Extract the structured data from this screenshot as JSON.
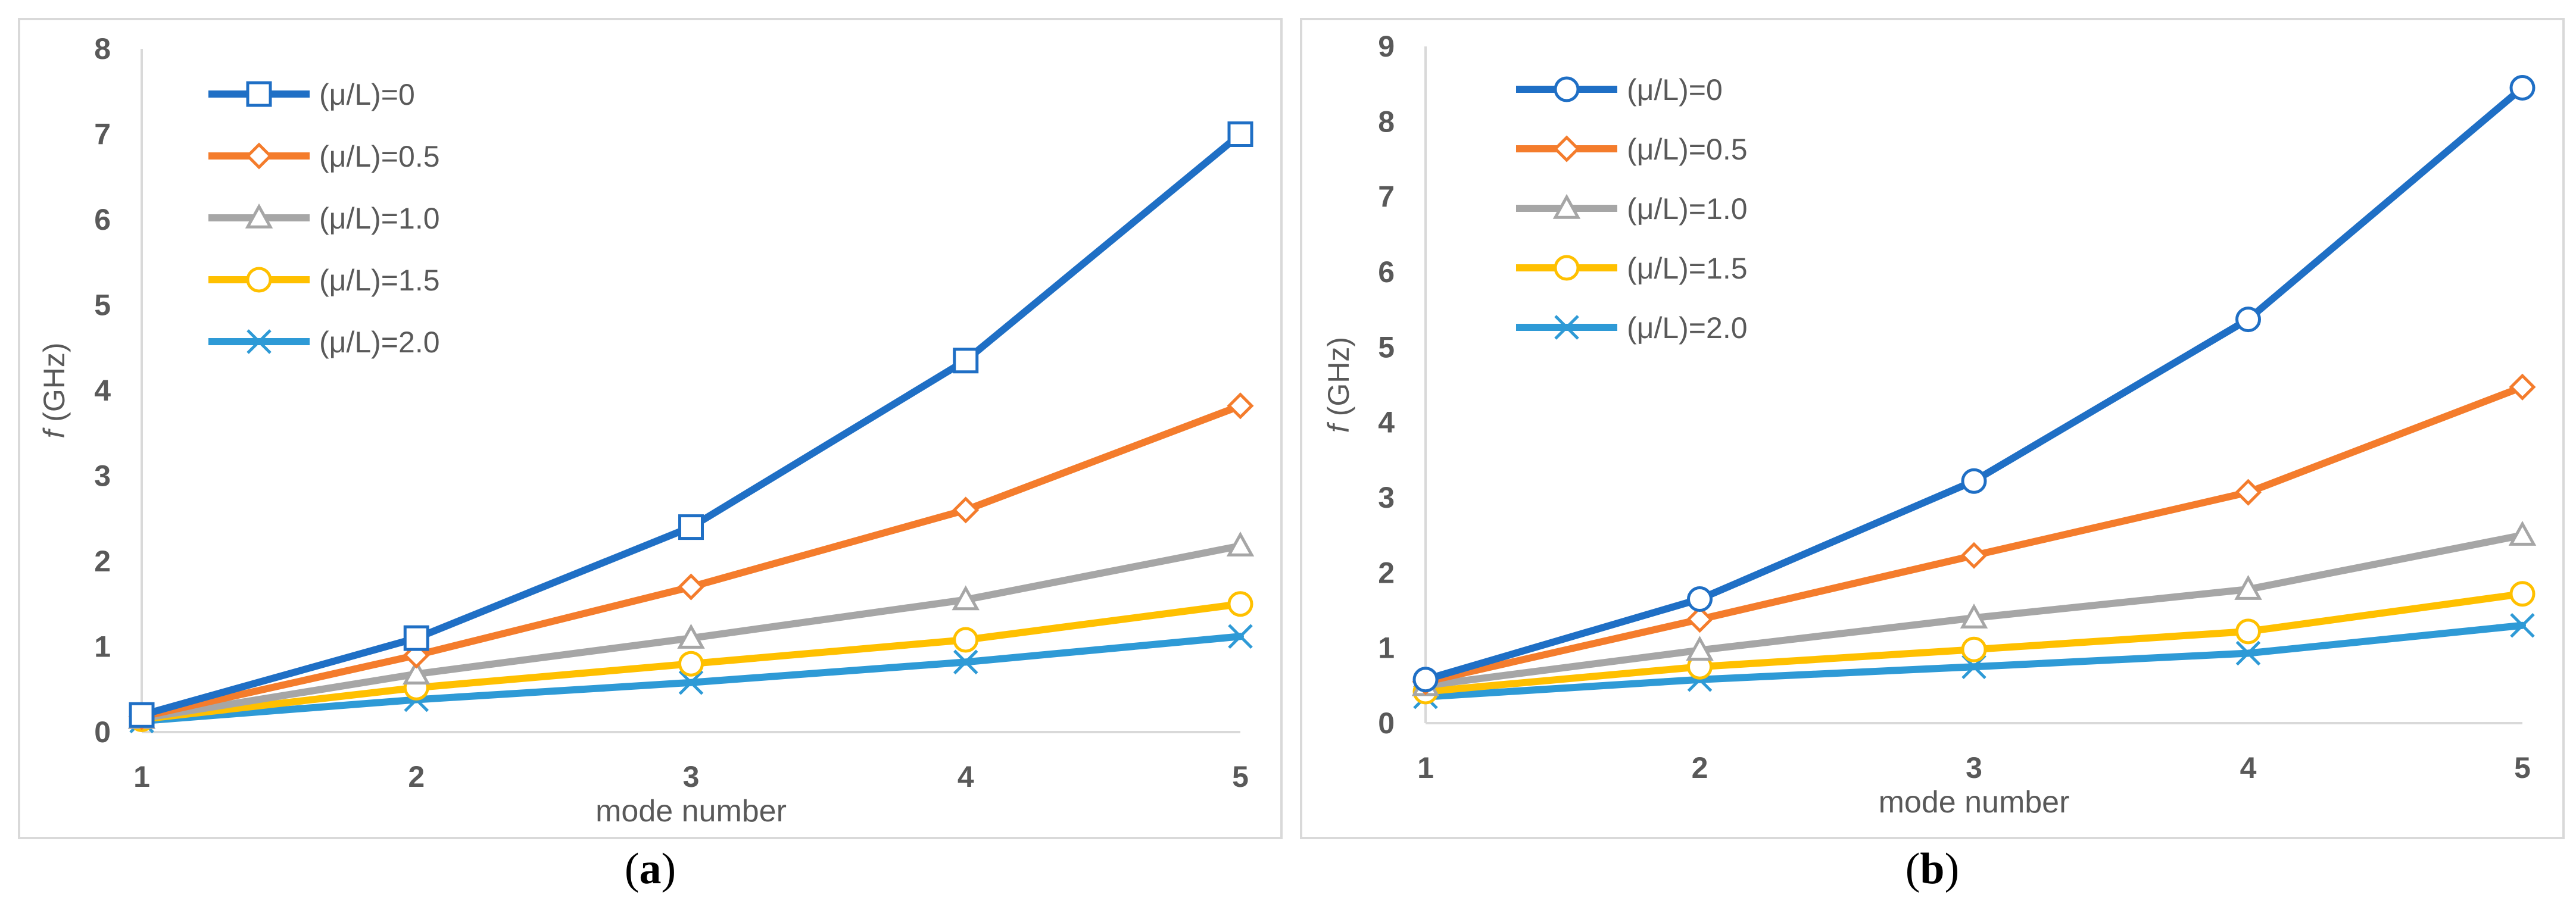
{
  "colors": {
    "series": [
      "#1F6FC5",
      "#F47C2C",
      "#A6A6A6",
      "#FFC000",
      "#2E9AD6"
    ],
    "frame": "#D9D9D9",
    "axis": "#D9D9D9",
    "tick_text": "#595959",
    "axis_label_text": "#595959"
  },
  "chart_data": [
    {
      "type": "line",
      "panel": "a",
      "caption": {
        "open": "(",
        "letter": "a",
        "close": ")"
      },
      "xlabel": "mode number",
      "ylabel": {
        "italic": "f",
        "unit": " (GHz)"
      },
      "x": [
        1,
        2,
        3,
        4,
        5
      ],
      "xticks": [
        "1",
        "2",
        "3",
        "4",
        "5"
      ],
      "yticks": [
        "0",
        "1",
        "2",
        "3",
        "4",
        "5",
        "6",
        "7",
        "8"
      ],
      "ylim": [
        0,
        8
      ],
      "grid": false,
      "legend_position": "top-left",
      "series": [
        {
          "name": "(μ/L)=0",
          "marker": "square",
          "values": [
            0.2,
            1.1,
            2.4,
            4.35,
            7.0
          ]
        },
        {
          "name": "(μ/L)=0.5",
          "marker": "diamond",
          "values": [
            0.18,
            0.9,
            1.7,
            2.6,
            3.82
          ]
        },
        {
          "name": "(μ/L)=1.0",
          "marker": "triangle",
          "values": [
            0.16,
            0.68,
            1.1,
            1.55,
            2.18
          ]
        },
        {
          "name": "(μ/L)=1.5",
          "marker": "circle",
          "values": [
            0.15,
            0.52,
            0.8,
            1.08,
            1.5
          ]
        },
        {
          "name": "(μ/L)=2.0",
          "marker": "x",
          "values": [
            0.13,
            0.38,
            0.58,
            0.82,
            1.12
          ]
        }
      ]
    },
    {
      "type": "line",
      "panel": "b",
      "caption": {
        "open": "(",
        "letter": "b",
        "close": ")"
      },
      "xlabel": "mode number",
      "ylabel": {
        "italic": "f",
        "unit": " (GHz)"
      },
      "x": [
        1,
        2,
        3,
        4,
        5
      ],
      "xticks": [
        "1",
        "2",
        "3",
        "4",
        "5"
      ],
      "yticks": [
        "0",
        "1",
        "2",
        "3",
        "4",
        "5",
        "6",
        "7",
        "8",
        "9"
      ],
      "ylim": [
        0,
        9
      ],
      "grid": false,
      "legend_position": "top-left",
      "series": [
        {
          "name": "(μ/L)=0",
          "marker": "circle",
          "values": [
            0.58,
            1.65,
            3.22,
            5.37,
            8.45
          ]
        },
        {
          "name": "(μ/L)=0.5",
          "marker": "diamond",
          "values": [
            0.55,
            1.38,
            2.23,
            3.07,
            4.47
          ]
        },
        {
          "name": "(μ/L)=1.0",
          "marker": "triangle",
          "values": [
            0.5,
            0.97,
            1.4,
            1.78,
            2.5
          ]
        },
        {
          "name": "(μ/L)=1.5",
          "marker": "circle",
          "values": [
            0.42,
            0.75,
            0.98,
            1.22,
            1.72
          ]
        },
        {
          "name": "(μ/L)=2.0",
          "marker": "x",
          "values": [
            0.35,
            0.58,
            0.75,
            0.93,
            1.3
          ]
        }
      ]
    }
  ]
}
